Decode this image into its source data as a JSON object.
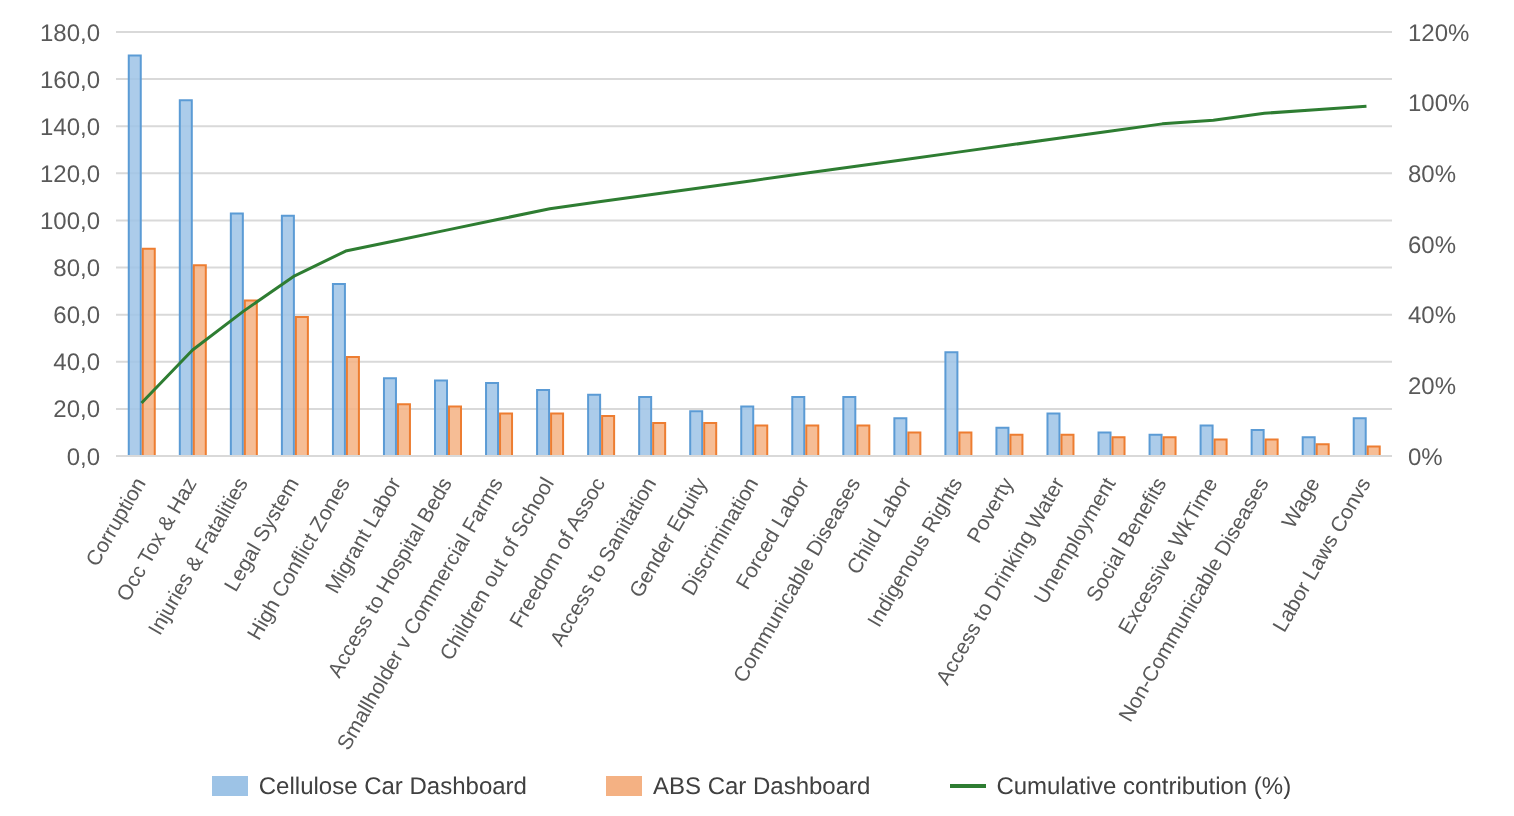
{
  "chart_data": {
    "type": "bar",
    "categories": [
      "Corruption",
      "Occ Tox & Haz",
      "Injuries & Fatalities",
      "Legal System",
      "High Conflict Zones",
      "Migrant Labor",
      "Access to Hospital Beds",
      "Smallholder v Commercial Farms",
      "Children out of School",
      "Freedom of Assoc",
      "Access to Sanitation",
      "Gender Equity",
      "Discrimination",
      "Forced Labor",
      "Communicable Diseases",
      "Child Labor",
      "Indigenous Rights",
      "Poverty",
      "Access to Drinking Water",
      "Unemployment",
      "Social Benefits",
      "Excessive WkTime",
      "Non-Communicable Diseases",
      "Wage",
      "Labor Laws Convs"
    ],
    "series": [
      {
        "name": "Cellulose Car Dashboard",
        "color": "#9dc3e6",
        "values": [
          170,
          151,
          103,
          102,
          73,
          33,
          32,
          31,
          28,
          26,
          25,
          19,
          21,
          25,
          25,
          16,
          44,
          12,
          18,
          10,
          9,
          13,
          11,
          8,
          16
        ]
      },
      {
        "name": "ABS Car Dashboard",
        "color": "#f4b183",
        "values": [
          88,
          81,
          66,
          59,
          42,
          22,
          21,
          18,
          18,
          17,
          14,
          14,
          13,
          13,
          13,
          10,
          10,
          9,
          9,
          8,
          8,
          7,
          7,
          5,
          4
        ]
      },
      {
        "name": "Cumulative contribution (%)",
        "type": "line",
        "axis": "y2",
        "color": "#2e7d32",
        "values": [
          15,
          30,
          41,
          51,
          58,
          61,
          64,
          67,
          70,
          72,
          74,
          76,
          78,
          80,
          82,
          84,
          86,
          88,
          90,
          92,
          94,
          95,
          97,
          98,
          99
        ]
      }
    ],
    "ylim": [
      0,
      180
    ],
    "yticks": [
      {
        "value": 0,
        "label": "0,0"
      },
      {
        "value": 20,
        "label": "20,0"
      },
      {
        "value": 40,
        "label": "40,0"
      },
      {
        "value": 60,
        "label": "60,0"
      },
      {
        "value": 80,
        "label": "80,0"
      },
      {
        "value": 100,
        "label": "100,0"
      },
      {
        "value": 120,
        "label": "120,0"
      },
      {
        "value": 140,
        "label": "140,0"
      },
      {
        "value": 160,
        "label": "160,0"
      },
      {
        "value": 180,
        "label": "180,0"
      }
    ],
    "y2lim": [
      0,
      120
    ],
    "y2ticks": [
      {
        "value": 0,
        "label": "0%"
      },
      {
        "value": 20,
        "label": "20%"
      },
      {
        "value": 40,
        "label": "40%"
      },
      {
        "value": 60,
        "label": "60%"
      },
      {
        "value": 80,
        "label": "80%"
      },
      {
        "value": 100,
        "label": "100%"
      },
      {
        "value": 120,
        "label": "120%"
      }
    ],
    "grid": "y",
    "legend": "bottom",
    "marker": "none",
    "line_style": "solid"
  }
}
